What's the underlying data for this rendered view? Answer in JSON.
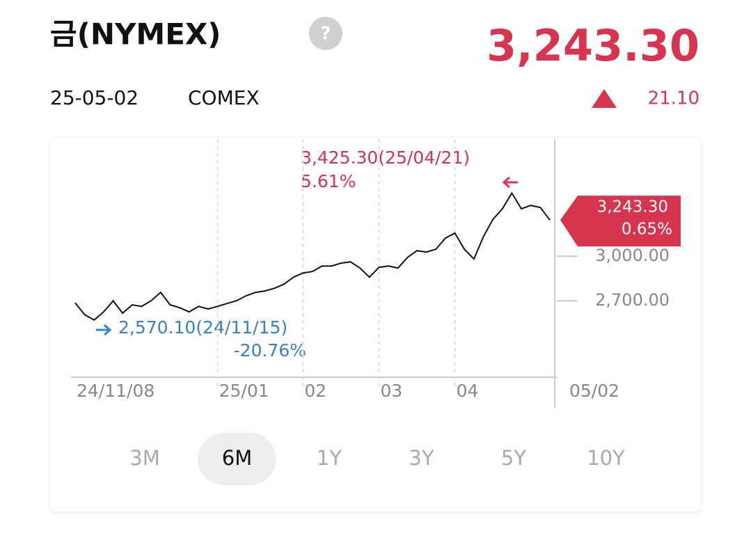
{
  "header": {
    "title": "금(NYMEX)",
    "date": "25-05-02",
    "exchange": "COMEX",
    "price": "3,243.30",
    "change": "21.10"
  },
  "chart_data": {
    "type": "line",
    "categories": [
      "24/11/08",
      null,
      null,
      null,
      null,
      null,
      null,
      null,
      null,
      null,
      null,
      null,
      null,
      null,
      null,
      "25/01",
      null,
      null,
      null,
      null,
      null,
      null,
      null,
      null,
      "02",
      null,
      null,
      null,
      null,
      null,
      null,
      null,
      "03",
      null,
      null,
      null,
      null,
      null,
      null,
      null,
      "04",
      null,
      null,
      null,
      null,
      null,
      null,
      null,
      null,
      null,
      "05/02"
    ],
    "values": [
      2686,
      2606,
      2570.1,
      2625,
      2700,
      2616,
      2672,
      2662,
      2700,
      2756,
      2672,
      2653,
      2625,
      2662,
      2644,
      2662,
      2681,
      2700,
      2733,
      2756,
      2766,
      2784,
      2812,
      2859,
      2887,
      2897,
      2934,
      2934,
      2953,
      2962,
      2920,
      2859,
      2925,
      2934,
      2920,
      2991,
      3037,
      3028,
      3047,
      3122,
      3155,
      3047,
      2981,
      3131,
      3248,
      3319,
      3425.3,
      3319,
      3342,
      3328,
      3243.3
    ],
    "color": "#111111",
    "ylim": [
      2194,
      3788
    ],
    "yticks": [
      {
        "value": 2700,
        "label": "2,700.00"
      },
      {
        "value": 3000,
        "label": "3,000.00"
      }
    ],
    "grid": true,
    "annotations": {
      "max_price": "3,425.30(25/04/21)",
      "max_pct": "5.61%",
      "min_price": "2,570.10(24/11/15)",
      "min_pct": "-20.76%",
      "last_price": "3,243.30",
      "last_pct": "0.65%"
    }
  },
  "tabs": [
    "3M",
    "6M",
    "1Y",
    "3Y",
    "5Y",
    "10Y"
  ],
  "selected_tab": "6M"
}
